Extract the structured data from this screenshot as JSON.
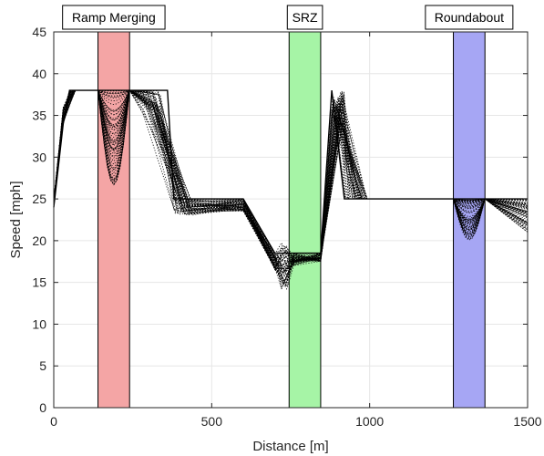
{
  "chart_data": {
    "type": "line",
    "title": "",
    "xlabel": "Distance [m]",
    "ylabel": "Speed [mph]",
    "xlim": [
      0,
      1500
    ],
    "ylim": [
      0,
      45
    ],
    "xticks": [
      0,
      500,
      1000,
      1500
    ],
    "yticks": [
      0,
      5,
      10,
      15,
      20,
      25,
      30,
      35,
      40,
      45
    ],
    "grid": true,
    "legend": "none",
    "line_color": "#000000",
    "line_style": "dotted",
    "zones": [
      {
        "label": "Ramp Merging",
        "x_start": 140,
        "x_end": 240,
        "color": "#f4a5a5"
      },
      {
        "label": "SRZ",
        "x_start": 745,
        "x_end": 845,
        "color": "#a6f4a6"
      },
      {
        "label": "Roundabout",
        "x_start": 1265,
        "x_end": 1365,
        "color": "#a6a6f4"
      }
    ],
    "series_template": [
      [
        0,
        24
      ],
      [
        30,
        34
      ],
      [
        50,
        38
      ],
      [
        140,
        38
      ],
      [
        200,
        38
      ],
      [
        240,
        38
      ],
      [
        280,
        38
      ],
      [
        360,
        38
      ],
      [
        380,
        25
      ],
      [
        600,
        25
      ],
      [
        700,
        18.5
      ],
      [
        740,
        18.5
      ],
      [
        845,
        18.5
      ],
      [
        880,
        38
      ],
      [
        920,
        25
      ],
      [
        1265,
        25
      ],
      [
        1365,
        25
      ],
      [
        1500,
        25
      ]
    ]
  }
}
